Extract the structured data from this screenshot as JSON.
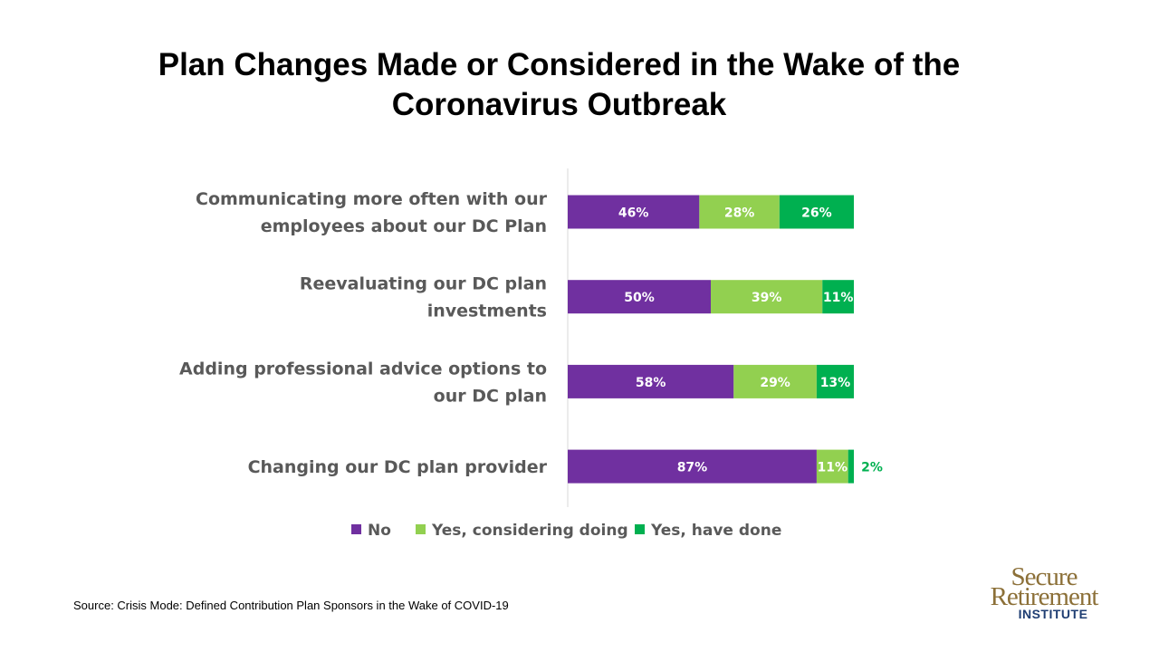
{
  "title": {
    "line1": "Plan Changes Made or Considered in the Wake of the",
    "line2": "Coronavirus Outbreak"
  },
  "chart_data": {
    "type": "bar",
    "orientation": "horizontal",
    "stacked": true,
    "categories": [
      [
        "Communicating more often with our",
        "employees about our DC Plan"
      ],
      [
        "Reevaluating our DC plan",
        "investments"
      ],
      [
        "Adding professional advice options to",
        "our DC plan"
      ],
      [
        "Changing our DC plan provider"
      ]
    ],
    "series": [
      {
        "name": "No",
        "color": "#7030a0",
        "values": [
          46,
          50,
          58,
          87
        ],
        "labels": [
          "46%",
          "50%",
          "58%",
          "87%"
        ]
      },
      {
        "name": "Yes, considering doing",
        "color": "#92d050",
        "values": [
          28,
          39,
          29,
          11
        ],
        "labels": [
          "28%",
          "39%",
          "29%",
          "11%"
        ]
      },
      {
        "name": "Yes, have done",
        "color": "#00b050",
        "values": [
          26,
          11,
          13,
          2
        ],
        "labels": [
          "26%",
          "11%",
          "13%",
          "2%"
        ]
      }
    ],
    "xlim": [
      0,
      100
    ],
    "legend_position": "bottom",
    "grid": false
  },
  "source": "Source: Crisis Mode: Defined Contribution Plan Sponsors in the Wake of COVID-19",
  "logo": {
    "line1": "Secure",
    "line2": "Retirement",
    "line3": "INSTITUTE"
  }
}
